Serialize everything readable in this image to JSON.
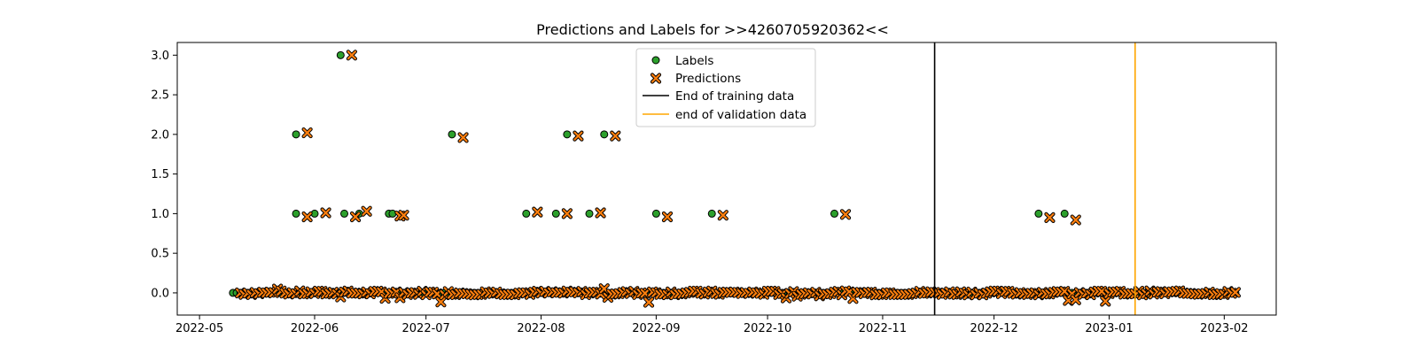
{
  "chart_data": {
    "type": "scatter",
    "title": "Predictions and Labels for >>4260705920362<<",
    "xlabel": "",
    "ylabel": "",
    "xlim": [
      "2022-04-25",
      "2023-02-15"
    ],
    "ylim": [
      -0.28,
      3.16
    ],
    "xticks": [
      "2022-05",
      "2022-06",
      "2022-07",
      "2022-08",
      "2022-09",
      "2022-10",
      "2022-11",
      "2022-12",
      "2023-01",
      "2023-02"
    ],
    "yticks": [
      "0.0",
      "0.5",
      "1.0",
      "1.5",
      "2.0",
      "2.5",
      "3.0"
    ],
    "grid": false,
    "legend_position": "upper center",
    "colors": {
      "labels": "#2ca02c",
      "predictions": "#ff7f0e",
      "training_line": "#000000",
      "validation_line": "#ffa500"
    },
    "series": [
      {
        "name": "Labels",
        "marker": "circle",
        "points": [
          {
            "x": "2022-05-27",
            "y": 2
          },
          {
            "x": "2022-05-27",
            "y": 1
          },
          {
            "x": "2022-06-01",
            "y": 1
          },
          {
            "x": "2022-06-08",
            "y": 3
          },
          {
            "x": "2022-06-09",
            "y": 1
          },
          {
            "x": "2022-06-13",
            "y": 1
          },
          {
            "x": "2022-06-21",
            "y": 1
          },
          {
            "x": "2022-06-22",
            "y": 1
          },
          {
            "x": "2022-07-08",
            "y": 2
          },
          {
            "x": "2022-07-28",
            "y": 1
          },
          {
            "x": "2022-08-05",
            "y": 1
          },
          {
            "x": "2022-08-08",
            "y": 2
          },
          {
            "x": "2022-08-14",
            "y": 1
          },
          {
            "x": "2022-08-18",
            "y": 2
          },
          {
            "x": "2022-09-01",
            "y": 1
          },
          {
            "x": "2022-09-16",
            "y": 1
          },
          {
            "x": "2022-10-19",
            "y": 1
          },
          {
            "x": "2022-12-13",
            "y": 1
          },
          {
            "x": "2022-12-20",
            "y": 1
          }
        ]
      },
      {
        "name": "Predictions",
        "marker": "x",
        "points": [
          {
            "x": "2022-05-30",
            "y": 2.02
          },
          {
            "x": "2022-05-30",
            "y": 0.96
          },
          {
            "x": "2022-06-04",
            "y": 1.01
          },
          {
            "x": "2022-06-11",
            "y": 3.0
          },
          {
            "x": "2022-06-12",
            "y": 0.96
          },
          {
            "x": "2022-06-15",
            "y": 1.03
          },
          {
            "x": "2022-06-24",
            "y": 0.97
          },
          {
            "x": "2022-06-25",
            "y": 0.98
          },
          {
            "x": "2022-07-11",
            "y": 1.96
          },
          {
            "x": "2022-07-31",
            "y": 1.02
          },
          {
            "x": "2022-08-08",
            "y": 1.0
          },
          {
            "x": "2022-08-11",
            "y": 1.98
          },
          {
            "x": "2022-08-17",
            "y": 1.01
          },
          {
            "x": "2022-08-21",
            "y": 1.98
          },
          {
            "x": "2022-09-04",
            "y": 0.96
          },
          {
            "x": "2022-09-19",
            "y": 0.98
          },
          {
            "x": "2022-10-22",
            "y": 0.99
          },
          {
            "x": "2022-12-16",
            "y": 0.95
          },
          {
            "x": "2022-12-23",
            "y": 0.92
          }
        ]
      }
    ],
    "baseline": {
      "start": "2022-05-10",
      "end": "2023-02-04",
      "label_value": 0,
      "prediction_noise": [
        -0.13,
        0.06
      ]
    },
    "vlines": [
      {
        "name": "End of training data",
        "x": "2022-11-15"
      },
      {
        "name": "end of validation data",
        "x": "2023-01-08"
      }
    ]
  },
  "legend": {
    "labels": "Labels",
    "predictions": "Predictions",
    "training": "End of training data",
    "validation": "end of validation data"
  }
}
